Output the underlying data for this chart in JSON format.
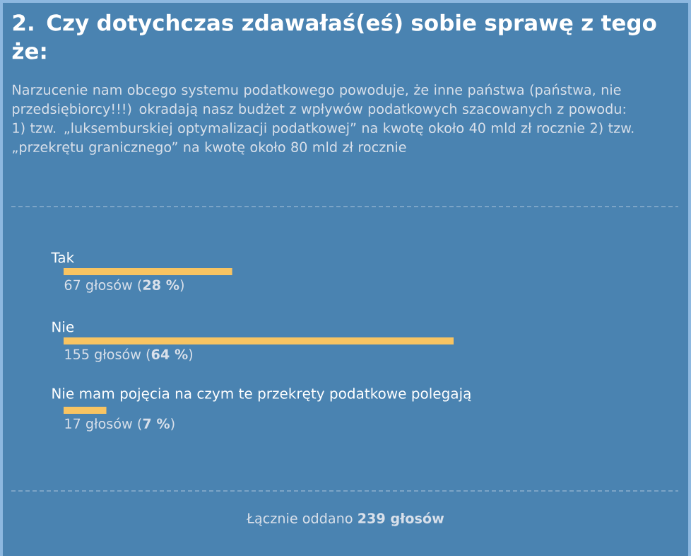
{
  "chart_data": {
    "type": "bar",
    "orientation": "horizontal",
    "title": "2. Czy dotychczas zdawałaś(eś) sobie sprawę z tego że:",
    "subtitle": "Narzucenie nam obcego systemu podatkowego powoduje, że inne państwa (państwa, nie przedsiębiorcy!!!) okradają nasz budżet z wpływów podatkowych szacowanych z powodu: 1) tzw. „luksemburskiej optymalizacji podatkowej” na kwotę około 40 mld zł rocznie 2) tzw. „przekrętu granicznego” na kwotę około 80 mld zł rocznie",
    "categories": [
      "Tak",
      "Nie",
      "Nie mam pojęcia na czym te przekręty podatkowe polegają"
    ],
    "values": [
      67,
      155,
      17
    ],
    "value_labels": [
      "67 głosów (**28 %**)",
      "155 głosów (**64 %**)",
      "17 głosów (**7 %**)"
    ],
    "color": "#f8c462",
    "annotations": [
      "Łącznie oddano **239 głosów**"
    ]
  }
}
